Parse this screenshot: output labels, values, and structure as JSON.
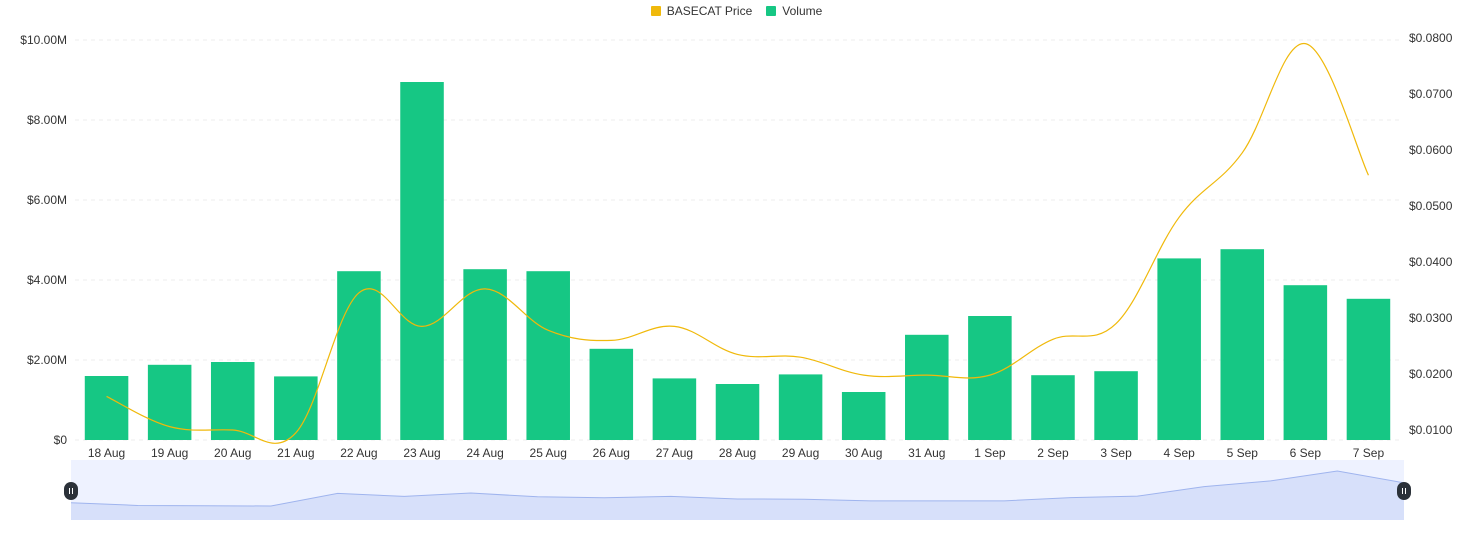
{
  "chart_data": {
    "type": "bar",
    "title": "",
    "categories": [
      "18 Aug",
      "19 Aug",
      "20 Aug",
      "21 Aug",
      "22 Aug",
      "23 Aug",
      "24 Aug",
      "25 Aug",
      "26 Aug",
      "27 Aug",
      "28 Aug",
      "29 Aug",
      "30 Aug",
      "31 Aug",
      "1 Sep",
      "2 Sep",
      "3 Sep",
      "4 Sep",
      "5 Sep",
      "6 Sep",
      "7 Sep"
    ],
    "series": [
      {
        "name": "BASECAT Price",
        "type": "line",
        "axis": "right",
        "color": "#F0B90B",
        "values": [
          0.016,
          0.0106,
          0.01,
          0.0095,
          0.0345,
          0.0285,
          0.0352,
          0.0278,
          0.026,
          0.0285,
          0.0235,
          0.023,
          0.0198,
          0.0198,
          0.0198,
          0.0262,
          0.029,
          0.048,
          0.0595,
          0.079,
          0.0555
        ]
      },
      {
        "name": "Volume",
        "type": "bar",
        "axis": "left",
        "color": "#16C784",
        "values": [
          1600000,
          1880000,
          1950000,
          1590000,
          4220000,
          8950000,
          4270000,
          4220000,
          2280000,
          1540000,
          1400000,
          1640000,
          1200000,
          2630000,
          3100000,
          1620000,
          1720000,
          4540000,
          4770000,
          3870000,
          3530000
        ]
      }
    ],
    "y_left": {
      "min": 0,
      "max": 10000000,
      "ticks": [
        "$0",
        "$2.00M",
        "$4.00M",
        "$6.00M",
        "$8.00M",
        "$10.00M"
      ]
    },
    "y_right": {
      "min": 0.01,
      "max": 0.08,
      "ticks": [
        "$0.0100",
        "$0.0200",
        "$0.0300",
        "$0.0400",
        "$0.0500",
        "$0.0600",
        "$0.0700",
        "$0.0800"
      ]
    },
    "grid": true,
    "legend_position": "top-center",
    "navigator": {
      "range_start": 0,
      "range_end": 1
    }
  },
  "colors": {
    "grid": "#eeeeee",
    "axis_text": "#333333",
    "navigator_bg": "#eef2ff",
    "navigator_area": "#d7e0fa",
    "navigator_line": "#9fb4ee",
    "handle": "#2b3139"
  },
  "icons": {
    "navigator_handle": "pause-grip-icon"
  }
}
